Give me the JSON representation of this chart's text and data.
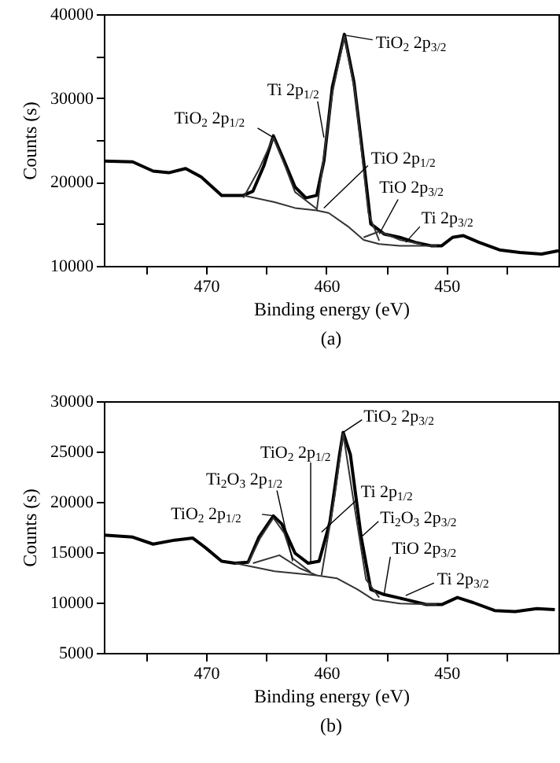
{
  "chart_data": [
    {
      "type": "line",
      "xlabel": "Binding energy (eV)",
      "ylabel": "Counts (s)",
      "xlim": [
        478.5,
        440.7
      ],
      "xticks": [
        {
          "value": 475,
          "label": null
        },
        470,
        {
          "value": 465,
          "label": null
        },
        460,
        {
          "value": 455,
          "label": null
        },
        450,
        {
          "value": 445,
          "label": null
        }
      ],
      "ylim": [
        10000,
        40000
      ],
      "yticks": [
        10000,
        {
          "value": 15000,
          "label": null
        },
        20000,
        {
          "value": 25000,
          "label": null
        },
        30000,
        {
          "value": 35000,
          "label": null
        },
        40000
      ],
      "grid": false,
      "series": [
        {
          "color": "#000000",
          "x": [
            478.5,
            476.1,
            474.4,
            473.1,
            471.7,
            470.4,
            468.7,
            466.9,
            466.1,
            465.2,
            464.4,
            463.5,
            462.6,
            461.7,
            460.8,
            460.2,
            459.5,
            458.5,
            457.7,
            456.9,
            456.3,
            455.2,
            453.9,
            452.6,
            451.3,
            450.4,
            449.5,
            448.6,
            447.3,
            445.6,
            443.9,
            442.1,
            440.7
          ],
          "values": [
            22500,
            22400,
            21300,
            21100,
            21600,
            20600,
            18400,
            18400,
            18900,
            21900,
            25500,
            22500,
            19400,
            18100,
            18400,
            22500,
            31300,
            37600,
            31900,
            22500,
            15000,
            13800,
            13400,
            12800,
            12400,
            12400,
            13400,
            13600,
            12800,
            11900,
            11600,
            11400,
            11800
          ]
        },
        {
          "color": "#333333",
          "x": [
            466.9,
            464.3,
            462.6,
            460.8,
            459.8,
            458.2,
            456.9,
            455.6,
            453.9,
            450.8
          ],
          "values": [
            18400,
            17600,
            16900,
            16600,
            16300,
            14700,
            13100,
            12600,
            12400,
            12400
          ]
        },
        {
          "color": "#333333",
          "x": [
            466.9,
            465.6,
            464.4,
            463.4,
            462.6,
            460.8
          ],
          "values": [
            18100,
            21500,
            25300,
            21800,
            18800,
            16800
          ]
        },
        {
          "color": "#333333",
          "x": [
            460.8,
            459.5,
            458.5,
            457.6,
            456.5,
            455.6
          ],
          "values": [
            16600,
            30600,
            37400,
            30600,
            16300,
            13000
          ]
        },
        {
          "color": "#333333",
          "x": [
            456.9,
            455.6,
            453.9,
            452.1
          ],
          "values": [
            13400,
            14100,
            13100,
            12600
          ]
        }
      ],
      "annotations": [
        {
          "text": "TiO$_{2}$ 2p$_{3/2}$",
          "x": 458.5,
          "y": 37500
        },
        {
          "text": "Ti 2p$_{1/2}$",
          "x": 460.2,
          "y": 25300
        },
        {
          "text": "TiO$_{2}$ 2p$_{1/2}$",
          "x": 464.4,
          "y": 25300
        },
        {
          "text": "TiO 2p$_{1/2}$",
          "x": 460.2,
          "y": 16900
        },
        {
          "text": "TiO 2p$_{3/2}$",
          "x": 455.6,
          "y": 13800
        },
        {
          "text": "Ti 2p$_{3/2}$",
          "x": 453.4,
          "y": 12800
        },
        "(a)"
      ]
    },
    {
      "type": "line",
      "xlabel": "Binding energy (eV)",
      "ylabel": "Counts (s)",
      "xlim": [
        478.5,
        440.7
      ],
      "xticks": [
        {
          "value": 475,
          "label": null
        },
        470,
        {
          "value": 465,
          "label": null
        },
        460,
        {
          "value": 455,
          "label": null
        },
        450,
        {
          "value": 445,
          "label": null
        }
      ],
      "ylim": [
        5000,
        30000
      ],
      "yticks": [
        5000,
        10000,
        15000,
        20000,
        25000,
        30000
      ],
      "grid": false,
      "series": [
        {
          "color": "#000000",
          "x": [
            478.5,
            476.1,
            474.4,
            472.6,
            471.1,
            470.0,
            468.7,
            467.6,
            466.5,
            465.6,
            464.4,
            463.7,
            462.6,
            461.5,
            460.6,
            459.7,
            458.9,
            458.6,
            458.0,
            457.1,
            456.3,
            455.2,
            453.4,
            451.7,
            450.4,
            449.1,
            447.8,
            446.0,
            444.3,
            442.5,
            441.0
          ],
          "values": [
            16700,
            16500,
            15800,
            16200,
            16400,
            15400,
            14100,
            13900,
            14000,
            16500,
            18600,
            17800,
            14900,
            13900,
            14100,
            18000,
            24700,
            26900,
            24700,
            16500,
            11300,
            10800,
            10300,
            9800,
            9800,
            10500,
            10000,
            9200,
            9100,
            9400,
            9300
          ]
        },
        {
          "color": "#333333",
          "x": [
            467.6,
            464.3,
            460.8,
            459.1,
            457.4,
            456.1,
            453.9,
            450.8
          ],
          "values": [
            13900,
            13100,
            12700,
            12400,
            11300,
            10300,
            9900,
            9800
          ]
        },
        {
          "color": "#333333",
          "x": [
            466.5,
            465.5,
            464.4,
            463.5,
            462.8,
            461.3
          ],
          "values": [
            13900,
            16400,
            18400,
            16900,
            14400,
            13000
          ]
        },
        {
          "color": "#333333",
          "x": [
            460.4,
            459.3,
            458.6,
            457.8,
            456.7,
            455.6
          ],
          "values": [
            12700,
            20600,
            26800,
            20600,
            12300,
            10500
          ]
        },
        {
          "color": "#333333",
          "x": [
            466.1,
            463.9,
            462.2,
            460.8
          ],
          "values": [
            13900,
            14700,
            13400,
            12700
          ]
        }
      ],
      "annotations": [
        {
          "text": "TiO$_{2}$ 2p$_{3/2}$",
          "x": 458.6,
          "y": 26900
        },
        {
          "text": "TiO$_{2}$ 2p$_{1/2}$",
          "x": 461.3,
          "y": 13900
        },
        {
          "text": "Ti$_{2}$O$_{3}$ 2p$_{1/2}$",
          "x": 462.8,
          "y": 14100
        },
        {
          "text": "TiO$_{2}$ 2p$_{1/2}$",
          "x": 464.3,
          "y": 18600
        },
        {
          "text": "Ti 2p$_{1/2}$",
          "x": 460.4,
          "y": 17000
        },
        {
          "text": "Ti$_{2}$O$_{3}$ 2p$_{3/2}$",
          "x": 457.1,
          "y": 16500
        },
        {
          "text": "TiO 2p$_{3/2}$",
          "x": 455.2,
          "y": 10800
        },
        {
          "text": "Ti 2p$_{3/2}$",
          "x": 453.4,
          "y": 10700
        },
        "(b)"
      ]
    }
  ]
}
